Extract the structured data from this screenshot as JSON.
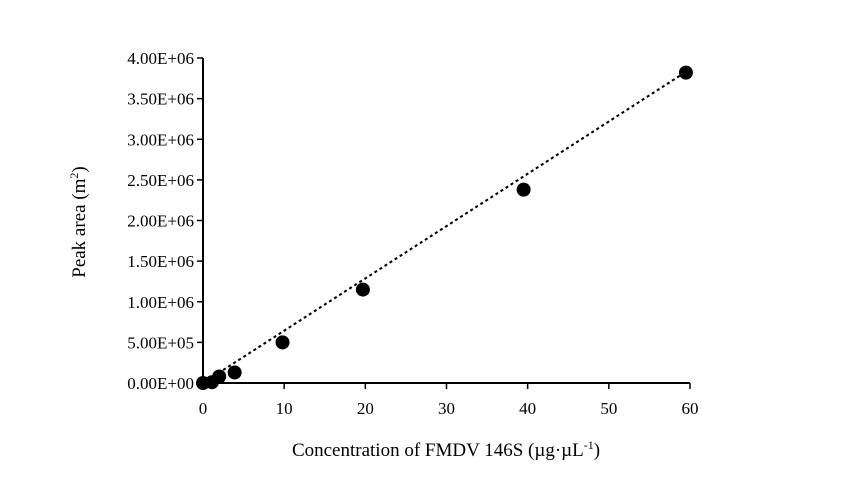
{
  "chart_data": {
    "type": "scatter",
    "title": "",
    "xlabel": "Concentration of FMDV 146S (µg·µL",
    "xlabel_superscript": "-1",
    "xlabel_suffix": ")",
    "ylabel": "Peak area (m",
    "ylabel_superscript": "2",
    "ylabel_suffix": ")",
    "xlim": [
      0,
      60
    ],
    "ylim": [
      0,
      4000000
    ],
    "x_ticks": [
      0,
      10,
      20,
      30,
      40,
      50,
      60
    ],
    "x_tick_labels": [
      "0",
      "10",
      "20",
      "30",
      "40",
      "50",
      "60"
    ],
    "y_ticks": [
      0,
      500000,
      1000000,
      1500000,
      2000000,
      2500000,
      3000000,
      3500000,
      4000000
    ],
    "y_tick_labels": [
      "0.00E+00",
      "5.00E+05",
      "1.00E+06",
      "1.50E+06",
      "2.00E+06",
      "2.50E+06",
      "3.00E+06",
      "3.50E+06",
      "4.00E+06"
    ],
    "grid": false,
    "legend": "none",
    "series": [
      {
        "marker_color": "#000000",
        "x": [
          0,
          1.1,
          2.0,
          3.9,
          9.8,
          19.7,
          39.5,
          59.5
        ],
        "y": [
          0,
          10000,
          80000,
          130000,
          500000,
          1150000,
          2380000,
          3820000
        ]
      }
    ],
    "trendline": {
      "style": "dotted",
      "color": "#000000",
      "x": [
        0,
        59.5
      ],
      "y": [
        0,
        3830000
      ]
    }
  }
}
